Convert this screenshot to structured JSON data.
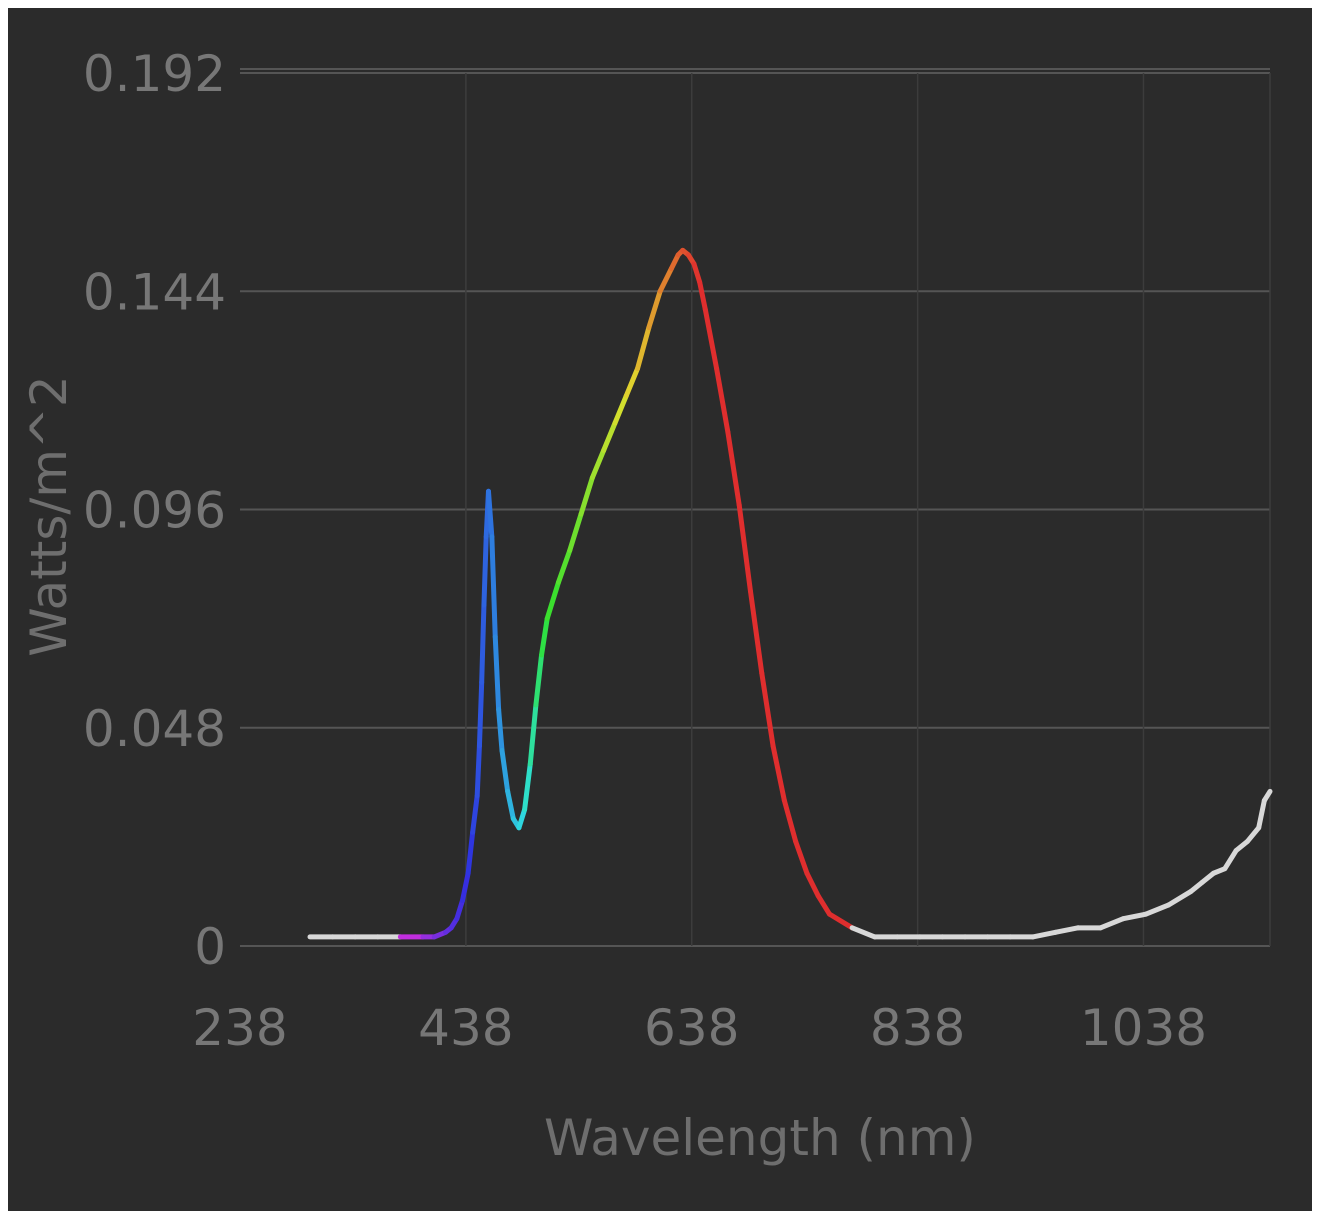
{
  "chart_data": {
    "type": "line",
    "title": "",
    "xlabel": "Wavelength (nm)",
    "ylabel": "Watts/m^2",
    "xlim": [
      238,
      1150
    ],
    "ylim": [
      0,
      0.192
    ],
    "x_ticks": [
      "238",
      "438",
      "638",
      "838",
      "1038"
    ],
    "y_ticks": [
      "0",
      "0.048",
      "0.096",
      "0.144",
      "0.192"
    ],
    "grid": true,
    "legend": "none",
    "series": [
      {
        "color_by_wavelength": true,
        "x": [
          300,
          320,
          340,
          360,
          380,
          400,
          410,
          420,
          425,
          430,
          435,
          440,
          444,
          448,
          450,
          452,
          454,
          456,
          458,
          461,
          464,
          467,
          470,
          475,
          480,
          485,
          490,
          495,
          500,
          505,
          510,
          520,
          530,
          540,
          550,
          560,
          570,
          580,
          590,
          600,
          610,
          620,
          626,
          630,
          635,
          640,
          645,
          650,
          660,
          670,
          680,
          690,
          700,
          710,
          720,
          730,
          740,
          750,
          760,
          780,
          800,
          820,
          840,
          860,
          880,
          900,
          920,
          940,
          960,
          980,
          1000,
          1020,
          1040,
          1060,
          1080,
          1090,
          1100,
          1110,
          1120,
          1130,
          1140,
          1145,
          1150
        ],
        "y": [
          0.002,
          0.002,
          0.002,
          0.002,
          0.002,
          0.002,
          0.002,
          0.003,
          0.004,
          0.006,
          0.01,
          0.016,
          0.025,
          0.033,
          0.044,
          0.058,
          0.075,
          0.09,
          0.1,
          0.09,
          0.068,
          0.052,
          0.043,
          0.034,
          0.028,
          0.026,
          0.03,
          0.04,
          0.053,
          0.064,
          0.072,
          0.08,
          0.087,
          0.095,
          0.103,
          0.109,
          0.115,
          0.121,
          0.127,
          0.136,
          0.144,
          0.149,
          0.152,
          0.153,
          0.152,
          0.15,
          0.146,
          0.14,
          0.127,
          0.113,
          0.097,
          0.078,
          0.06,
          0.044,
          0.032,
          0.023,
          0.016,
          0.011,
          0.007,
          0.004,
          0.002,
          0.002,
          0.002,
          0.002,
          0.002,
          0.002,
          0.002,
          0.002,
          0.003,
          0.004,
          0.004,
          0.006,
          0.007,
          0.009,
          0.012,
          0.014,
          0.016,
          0.017,
          0.021,
          0.023,
          0.026,
          0.032,
          0.034
        ]
      }
    ]
  },
  "colors": {
    "background": "#2b2b2b",
    "grid": "#555555",
    "text": "#777777",
    "outside_visible": "#d8d8d8"
  }
}
